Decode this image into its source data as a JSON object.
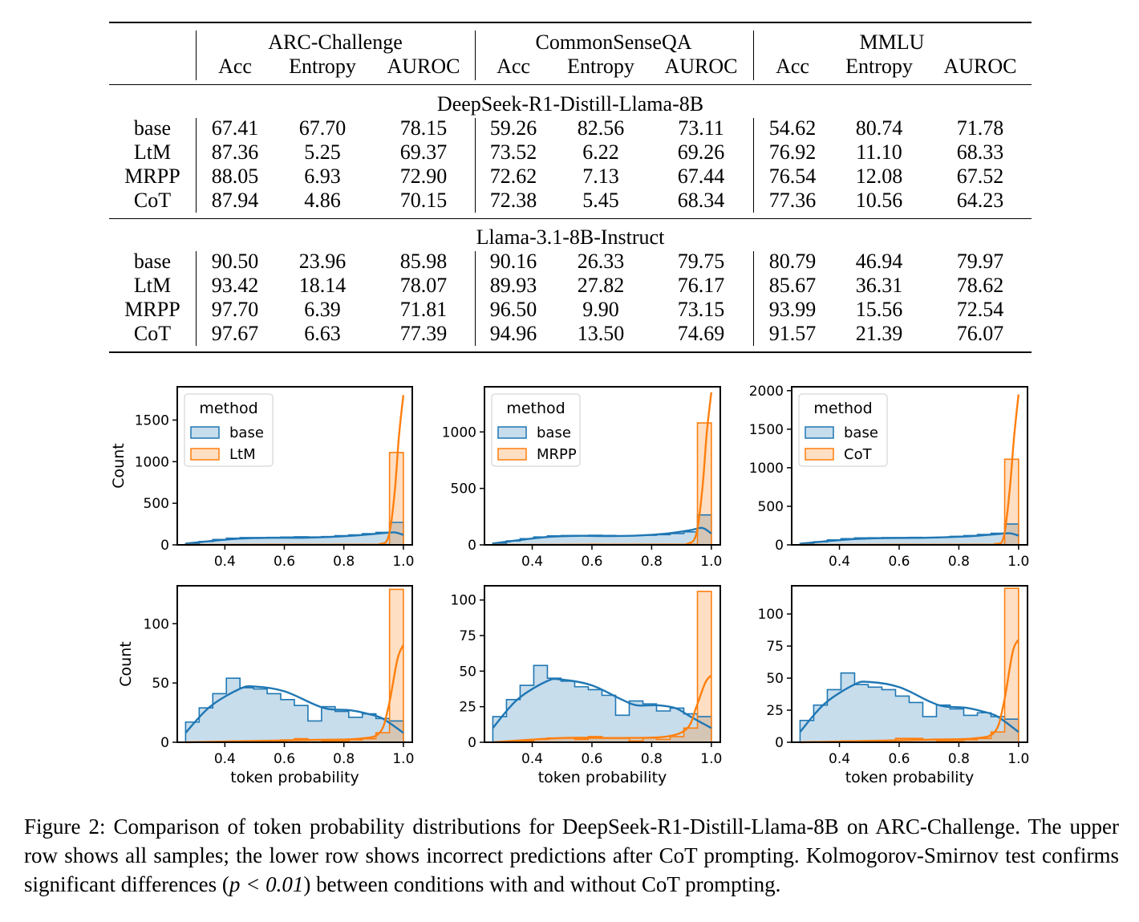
{
  "table": {
    "datasets": [
      "ARC-Challenge",
      "CommonSenseQA",
      "MMLU"
    ],
    "metrics": [
      "Acc",
      "Entropy",
      "AUROC"
    ],
    "sections": [
      {
        "model": "DeepSeek-R1-Distill-Llama-8B",
        "rows": [
          {
            "method": "base",
            "values": [
              "67.41",
              "67.70",
              "78.15",
              "59.26",
              "82.56",
              "73.11",
              "54.62",
              "80.74",
              "71.78"
            ]
          },
          {
            "method": "LtM",
            "values": [
              "87.36",
              "5.25",
              "69.37",
              "73.52",
              "6.22",
              "69.26",
              "76.92",
              "11.10",
              "68.33"
            ]
          },
          {
            "method": "MRPP",
            "values": [
              "88.05",
              "6.93",
              "72.90",
              "72.62",
              "7.13",
              "67.44",
              "76.54",
              "12.08",
              "67.52"
            ]
          },
          {
            "method": "CoT",
            "values": [
              "87.94",
              "4.86",
              "70.15",
              "72.38",
              "5.45",
              "68.34",
              "77.36",
              "10.56",
              "64.23"
            ]
          }
        ]
      },
      {
        "model": "Llama-3.1-8B-Instruct",
        "rows": [
          {
            "method": "base",
            "values": [
              "90.50",
              "23.96",
              "85.98",
              "90.16",
              "26.33",
              "79.75",
              "80.79",
              "46.94",
              "79.97"
            ]
          },
          {
            "method": "LtM",
            "values": [
              "93.42",
              "18.14",
              "78.07",
              "89.93",
              "27.82",
              "76.17",
              "85.67",
              "36.31",
              "78.62"
            ]
          },
          {
            "method": "MRPP",
            "values": [
              "97.70",
              "6.39",
              "71.81",
              "96.50",
              "9.90",
              "73.15",
              "93.99",
              "15.56",
              "72.54"
            ]
          },
          {
            "method": "CoT",
            "values": [
              "97.67",
              "6.63",
              "77.39",
              "94.96",
              "13.50",
              "74.69",
              "91.57",
              "21.39",
              "76.07"
            ]
          }
        ]
      }
    ]
  },
  "chart_data": [
    {
      "type": "histogram",
      "row": "upper",
      "legend_title": "method",
      "series": [
        {
          "name": "base",
          "color": "#1f77b4"
        },
        {
          "name": "LtM",
          "color": "#ff7f0e"
        }
      ],
      "xticks": [
        0.4,
        0.6,
        0.8,
        1.0
      ],
      "yticks": [
        0,
        500,
        1000,
        1500
      ],
      "ylim": [
        0,
        1900
      ],
      "ylabel": "Count",
      "xlabel": "",
      "bins_x": [
        0.268,
        0.3137,
        0.3594,
        0.4051,
        0.4508,
        0.4965,
        0.5422,
        0.5879,
        0.6336,
        0.6793,
        0.725,
        0.7707,
        0.8164,
        0.8621,
        0.9078,
        0.9535,
        1.0
      ],
      "base_counts": [
        15,
        40,
        65,
        80,
        88,
        88,
        90,
        93,
        97,
        95,
        100,
        110,
        120,
        135,
        150,
        270
      ],
      "other_counts": [
        0,
        0,
        0,
        0,
        0,
        3,
        5,
        6,
        5,
        4,
        2,
        4,
        3,
        5,
        6,
        1110
      ],
      "base_kde": [
        [
          0.268,
          15
        ],
        [
          0.35,
          45
        ],
        [
          0.45,
          75
        ],
        [
          0.55,
          85
        ],
        [
          0.65,
          85
        ],
        [
          0.75,
          95
        ],
        [
          0.85,
          115
        ],
        [
          0.93,
          140
        ],
        [
          0.97,
          150
        ],
        [
          1.0,
          120
        ]
      ],
      "other_kde": [
        [
          0.268,
          0
        ],
        [
          0.85,
          3
        ],
        [
          0.92,
          10
        ],
        [
          0.95,
          100
        ],
        [
          0.97,
          600
        ],
        [
          0.985,
          1300
        ],
        [
          1.0,
          1800
        ]
      ]
    },
    {
      "type": "histogram",
      "row": "upper",
      "legend_title": "method",
      "series": [
        {
          "name": "base",
          "color": "#1f77b4"
        },
        {
          "name": "MRPP",
          "color": "#ff7f0e"
        }
      ],
      "xticks": [
        0.4,
        0.6,
        0.8,
        1.0
      ],
      "yticks": [
        0,
        500,
        1000
      ],
      "ylim": [
        0,
        1400
      ],
      "ylabel": "",
      "xlabel": "",
      "bins_x": [
        0.268,
        0.3137,
        0.3594,
        0.4051,
        0.4508,
        0.4965,
        0.5422,
        0.5879,
        0.6336,
        0.6793,
        0.725,
        0.7707,
        0.8164,
        0.8621,
        0.9078,
        0.9535,
        1.0
      ],
      "base_counts": [
        15,
        35,
        55,
        70,
        80,
        82,
        83,
        85,
        83,
        80,
        83,
        85,
        90,
        100,
        115,
        265
      ],
      "other_counts": [
        0,
        0,
        0,
        0,
        0,
        3,
        5,
        6,
        5,
        4,
        2,
        4,
        3,
        5,
        6,
        1080
      ],
      "base_kde": [
        [
          0.268,
          12
        ],
        [
          0.35,
          40
        ],
        [
          0.45,
          70
        ],
        [
          0.55,
          80
        ],
        [
          0.65,
          78
        ],
        [
          0.75,
          82
        ],
        [
          0.85,
          100
        ],
        [
          0.93,
          130
        ],
        [
          0.97,
          150
        ],
        [
          1.0,
          100
        ]
      ],
      "other_kde": [
        [
          0.268,
          0
        ],
        [
          0.85,
          3
        ],
        [
          0.92,
          10
        ],
        [
          0.95,
          100
        ],
        [
          0.97,
          500
        ],
        [
          0.985,
          1000
        ],
        [
          1.0,
          1350
        ]
      ]
    },
    {
      "type": "histogram",
      "row": "upper",
      "legend_title": "method",
      "series": [
        {
          "name": "base",
          "color": "#1f77b4"
        },
        {
          "name": "CoT",
          "color": "#ff7f0e"
        }
      ],
      "xticks": [
        0.4,
        0.6,
        0.8,
        1.0
      ],
      "yticks": [
        0,
        500,
        1000,
        1500,
        2000
      ],
      "ylim": [
        0,
        2050
      ],
      "ylabel": "",
      "xlabel": "",
      "bins_x": [
        0.268,
        0.3137,
        0.3594,
        0.4051,
        0.4508,
        0.4965,
        0.5422,
        0.5879,
        0.6336,
        0.6793,
        0.725,
        0.7707,
        0.8164,
        0.8621,
        0.9078,
        0.9535,
        1.0
      ],
      "base_counts": [
        15,
        40,
        65,
        80,
        90,
        92,
        95,
        95,
        97,
        95,
        100,
        110,
        120,
        135,
        150,
        270
      ],
      "other_counts": [
        0,
        0,
        0,
        0,
        0,
        3,
        5,
        6,
        5,
        4,
        2,
        4,
        3,
        5,
        6,
        1110
      ],
      "base_kde": [
        [
          0.268,
          15
        ],
        [
          0.35,
          45
        ],
        [
          0.45,
          75
        ],
        [
          0.55,
          88
        ],
        [
          0.65,
          90
        ],
        [
          0.75,
          98
        ],
        [
          0.85,
          115
        ],
        [
          0.93,
          140
        ],
        [
          0.97,
          150
        ],
        [
          1.0,
          120
        ]
      ],
      "other_kde": [
        [
          0.268,
          0
        ],
        [
          0.85,
          3
        ],
        [
          0.92,
          10
        ],
        [
          0.95,
          100
        ],
        [
          0.97,
          700
        ],
        [
          0.985,
          1400
        ],
        [
          1.0,
          1950
        ]
      ]
    },
    {
      "type": "histogram",
      "row": "lower",
      "legend_title": "",
      "series": [
        {
          "name": "base",
          "color": "#1f77b4"
        },
        {
          "name": "LtM",
          "color": "#ff7f0e"
        }
      ],
      "xticks": [
        0.4,
        0.6,
        0.8,
        1.0
      ],
      "yticks": [
        0,
        50,
        100
      ],
      "ylim": [
        0,
        132
      ],
      "ylabel": "Count",
      "xlabel": "token probability",
      "bins_x": [
        0.268,
        0.3137,
        0.3594,
        0.4051,
        0.4508,
        0.4965,
        0.5422,
        0.5879,
        0.6336,
        0.6793,
        0.725,
        0.7707,
        0.8164,
        0.8621,
        0.9078,
        0.9535,
        1.0
      ],
      "base_counts": [
        17,
        29,
        41,
        54,
        46,
        45,
        41,
        36,
        31,
        18,
        30,
        26,
        21,
        24,
        20,
        18
      ],
      "other_counts": [
        0,
        0,
        0,
        1,
        1,
        1,
        0,
        2,
        3,
        2,
        1,
        1,
        2,
        3,
        8,
        129
      ],
      "base_kde": [
        [
          0.268,
          8
        ],
        [
          0.35,
          30
        ],
        [
          0.45,
          45
        ],
        [
          0.5,
          47
        ],
        [
          0.6,
          43
        ],
        [
          0.7,
          32
        ],
        [
          0.75,
          28
        ],
        [
          0.82,
          27
        ],
        [
          0.88,
          24
        ],
        [
          0.93,
          20
        ],
        [
          1.0,
          8
        ]
      ],
      "other_kde": [
        [
          0.268,
          0
        ],
        [
          0.7,
          2
        ],
        [
          0.85,
          3
        ],
        [
          0.92,
          8
        ],
        [
          0.95,
          30
        ],
        [
          0.98,
          70
        ],
        [
          1.0,
          82
        ]
      ]
    },
    {
      "type": "histogram",
      "row": "lower",
      "legend_title": "",
      "series": [
        {
          "name": "base",
          "color": "#1f77b4"
        },
        {
          "name": "MRPP",
          "color": "#ff7f0e"
        }
      ],
      "xticks": [
        0.4,
        0.6,
        0.8,
        1.0
      ],
      "yticks": [
        0,
        25,
        50,
        75,
        100
      ],
      "ylim": [
        0,
        110
      ],
      "ylabel": "",
      "xlabel": "token probability",
      "bins_x": [
        0.268,
        0.3137,
        0.3594,
        0.4051,
        0.4508,
        0.4965,
        0.5422,
        0.5879,
        0.6336,
        0.6793,
        0.725,
        0.7707,
        0.8164,
        0.8621,
        0.9078,
        0.9535,
        1.0
      ],
      "base_counts": [
        18,
        30,
        40,
        54,
        45,
        43,
        39,
        37,
        33,
        19,
        29,
        27,
        22,
        24,
        20,
        18
      ],
      "other_counts": [
        0,
        0,
        1,
        2,
        3,
        3,
        2,
        4,
        3,
        3,
        1,
        3,
        2,
        4,
        10,
        106
      ],
      "base_kde": [
        [
          0.268,
          10
        ],
        [
          0.35,
          30
        ],
        [
          0.45,
          43
        ],
        [
          0.5,
          44
        ],
        [
          0.6,
          40
        ],
        [
          0.7,
          30
        ],
        [
          0.75,
          26
        ],
        [
          0.82,
          26
        ],
        [
          0.88,
          24
        ],
        [
          0.93,
          18
        ],
        [
          1.0,
          10
        ]
      ],
      "other_kde": [
        [
          0.268,
          0
        ],
        [
          0.5,
          3
        ],
        [
          0.7,
          3
        ],
        [
          0.85,
          4
        ],
        [
          0.92,
          10
        ],
        [
          0.95,
          25
        ],
        [
          0.98,
          42
        ],
        [
          1.0,
          47
        ]
      ]
    },
    {
      "type": "histogram",
      "row": "lower",
      "legend_title": "",
      "series": [
        {
          "name": "base",
          "color": "#1f77b4"
        },
        {
          "name": "CoT",
          "color": "#ff7f0e"
        }
      ],
      "xticks": [
        0.4,
        0.6,
        0.8,
        1.0
      ],
      "yticks": [
        0,
        25,
        50,
        75,
        100
      ],
      "ylim": [
        0,
        122
      ],
      "ylabel": "",
      "xlabel": "token probability",
      "bins_x": [
        0.268,
        0.3137,
        0.3594,
        0.4051,
        0.4508,
        0.4965,
        0.5422,
        0.5879,
        0.6336,
        0.6793,
        0.725,
        0.7707,
        0.8164,
        0.8621,
        0.9078,
        0.9535,
        1.0
      ],
      "base_counts": [
        17,
        29,
        41,
        54,
        45,
        43,
        41,
        36,
        31,
        20,
        29,
        26,
        21,
        23,
        20,
        18
      ],
      "other_counts": [
        0,
        0,
        0,
        1,
        1,
        1,
        0,
        3,
        3,
        2,
        1,
        1,
        2,
        3,
        8,
        120
      ],
      "base_kde": [
        [
          0.268,
          8
        ],
        [
          0.35,
          30
        ],
        [
          0.45,
          45
        ],
        [
          0.5,
          47
        ],
        [
          0.6,
          43
        ],
        [
          0.7,
          32
        ],
        [
          0.75,
          28
        ],
        [
          0.82,
          27
        ],
        [
          0.88,
          24
        ],
        [
          0.93,
          20
        ],
        [
          1.0,
          8
        ]
      ],
      "other_kde": [
        [
          0.268,
          0
        ],
        [
          0.7,
          2
        ],
        [
          0.85,
          3
        ],
        [
          0.92,
          8
        ],
        [
          0.95,
          30
        ],
        [
          0.98,
          70
        ],
        [
          1.0,
          80
        ]
      ]
    }
  ],
  "caption": {
    "prefix": "Figure 2: Comparison of token probability distributions for DeepSeek-R1-Distill-Llama-8B on ARC-Challenge. The upper row shows all samples; the lower row shows incorrect predictions after CoT prompting. Kolmogorov-Smirnov test confirms significant differences (",
    "math": "p < 0.01",
    "suffix": ") between conditions with and without CoT prompting."
  },
  "colors": {
    "base": "#1f77b4",
    "other": "#ff7f0e"
  }
}
